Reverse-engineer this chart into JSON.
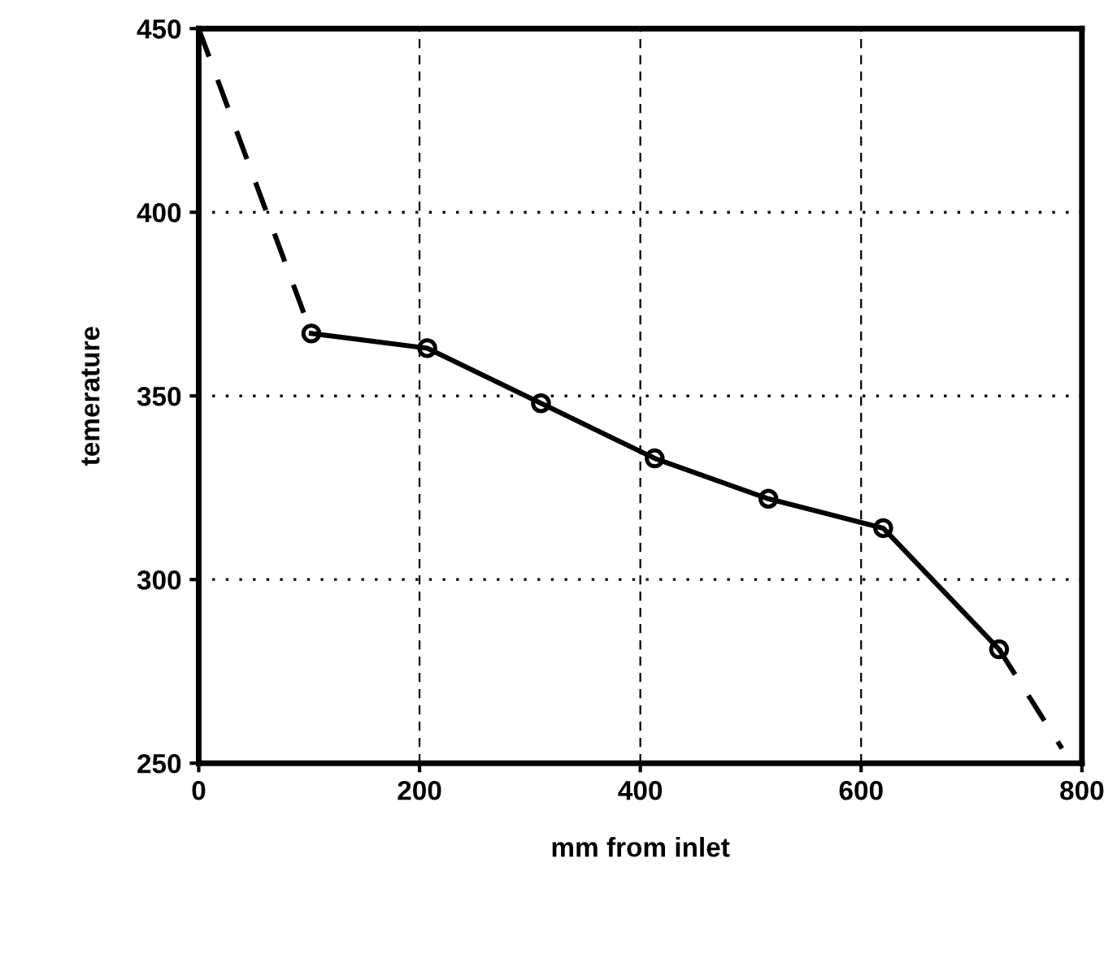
{
  "chart_data": {
    "type": "line",
    "xlabel": "mm from inlet",
    "ylabel": "temerature",
    "xlim": [
      0,
      800
    ],
    "ylim": [
      250,
      450
    ],
    "xticks": [
      0,
      200,
      400,
      600,
      800
    ],
    "yticks": [
      250,
      300,
      350,
      400,
      450
    ],
    "grid": true,
    "series": [
      {
        "color": "#000000",
        "x": [
          102,
          207,
          310,
          413,
          516,
          620,
          725
        ],
        "values": [
          367,
          363,
          348,
          333,
          322,
          314,
          281
        ],
        "marker": "circle",
        "line_style": "solid"
      },
      {
        "color": "#000000",
        "x": [
          0,
          102
        ],
        "values": [
          450,
          367
        ],
        "marker": "none",
        "line_style": "dashed"
      },
      {
        "color": "#000000",
        "x": [
          725,
          782
        ],
        "values": [
          281,
          254
        ],
        "marker": "none",
        "line_style": "dashed"
      }
    ]
  }
}
